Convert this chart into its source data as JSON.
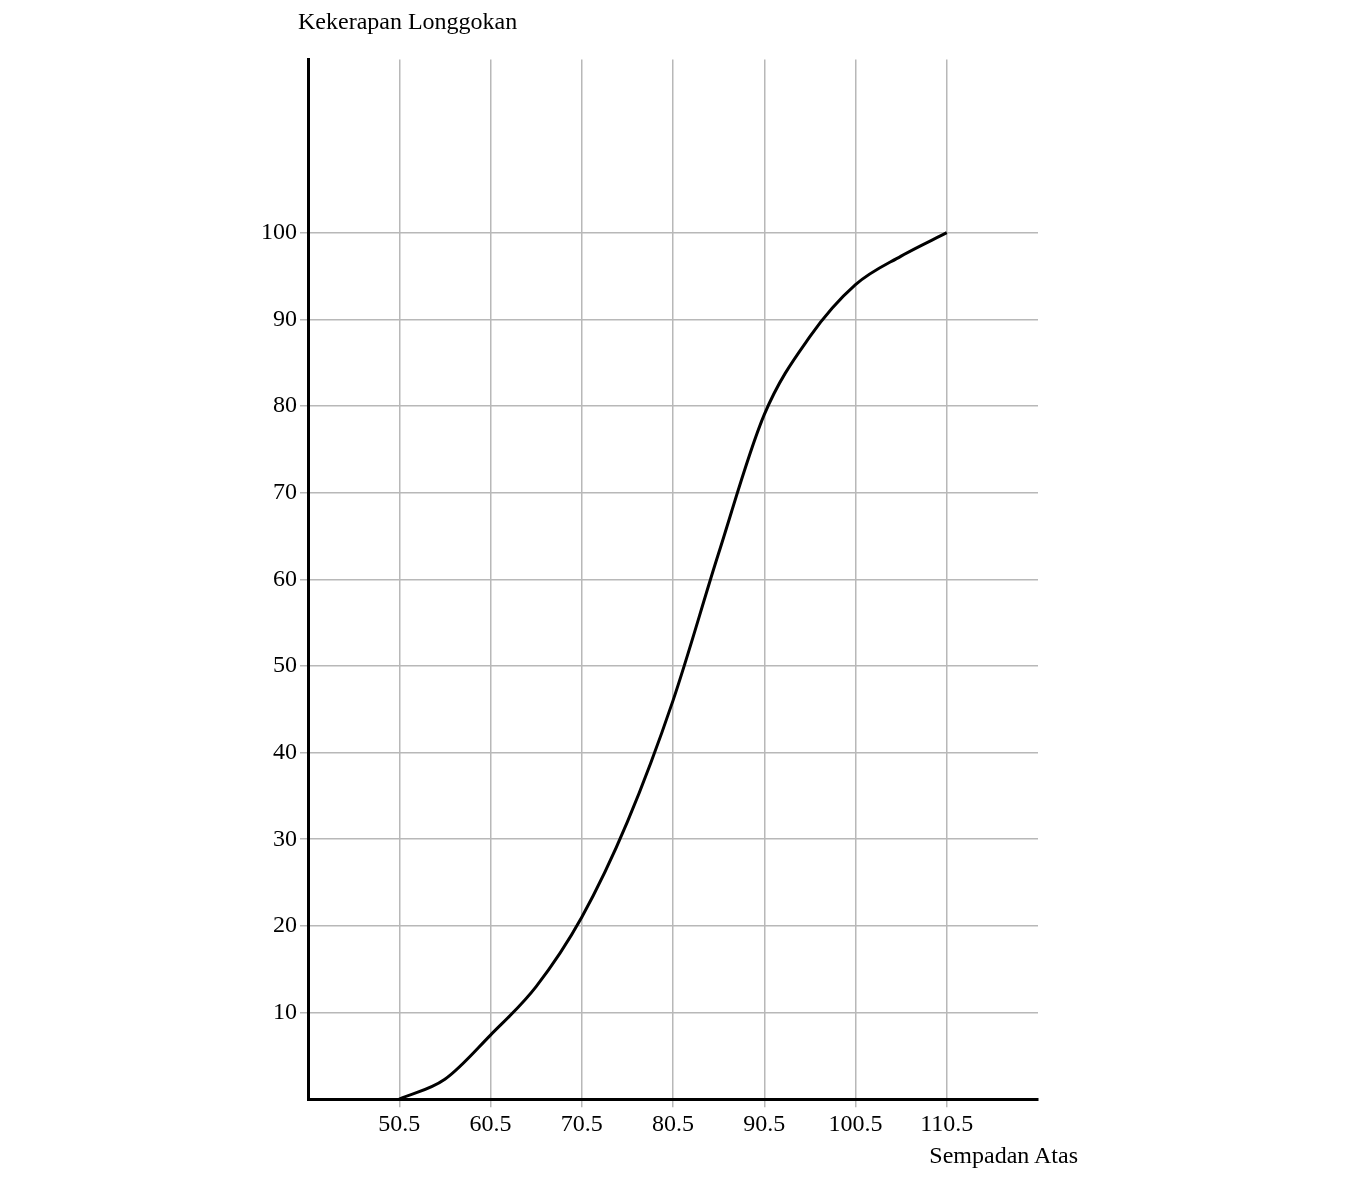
{
  "chart_data": {
    "type": "line",
    "xlabel": "Sempadan Atas",
    "ylabel": "Kekerapan Longgokan",
    "x": [
      50.5,
      55.5,
      60.5,
      65.5,
      70.5,
      75.5,
      80.5,
      85.5,
      90.5,
      95.5,
      100.5,
      105.5,
      110.5
    ],
    "series": [
      {
        "color": "#000000",
        "values": [
          0,
          2.3,
          7.4,
          13,
          21,
          32,
          46,
          63,
          79,
          88,
          94,
          97.3,
          100
        ]
      }
    ],
    "xlim": [
      40.5,
      120.5
    ],
    "xticks": [
      50.5,
      60.5,
      70.5,
      80.5,
      90.5,
      100.5,
      110.5
    ],
    "ylim": [
      0,
      120
    ],
    "yticks": [
      10,
      20,
      30,
      40,
      50,
      60,
      70,
      80,
      90,
      100
    ],
    "grid": true,
    "legend": false,
    "marker": "none",
    "line_style": "solid"
  }
}
